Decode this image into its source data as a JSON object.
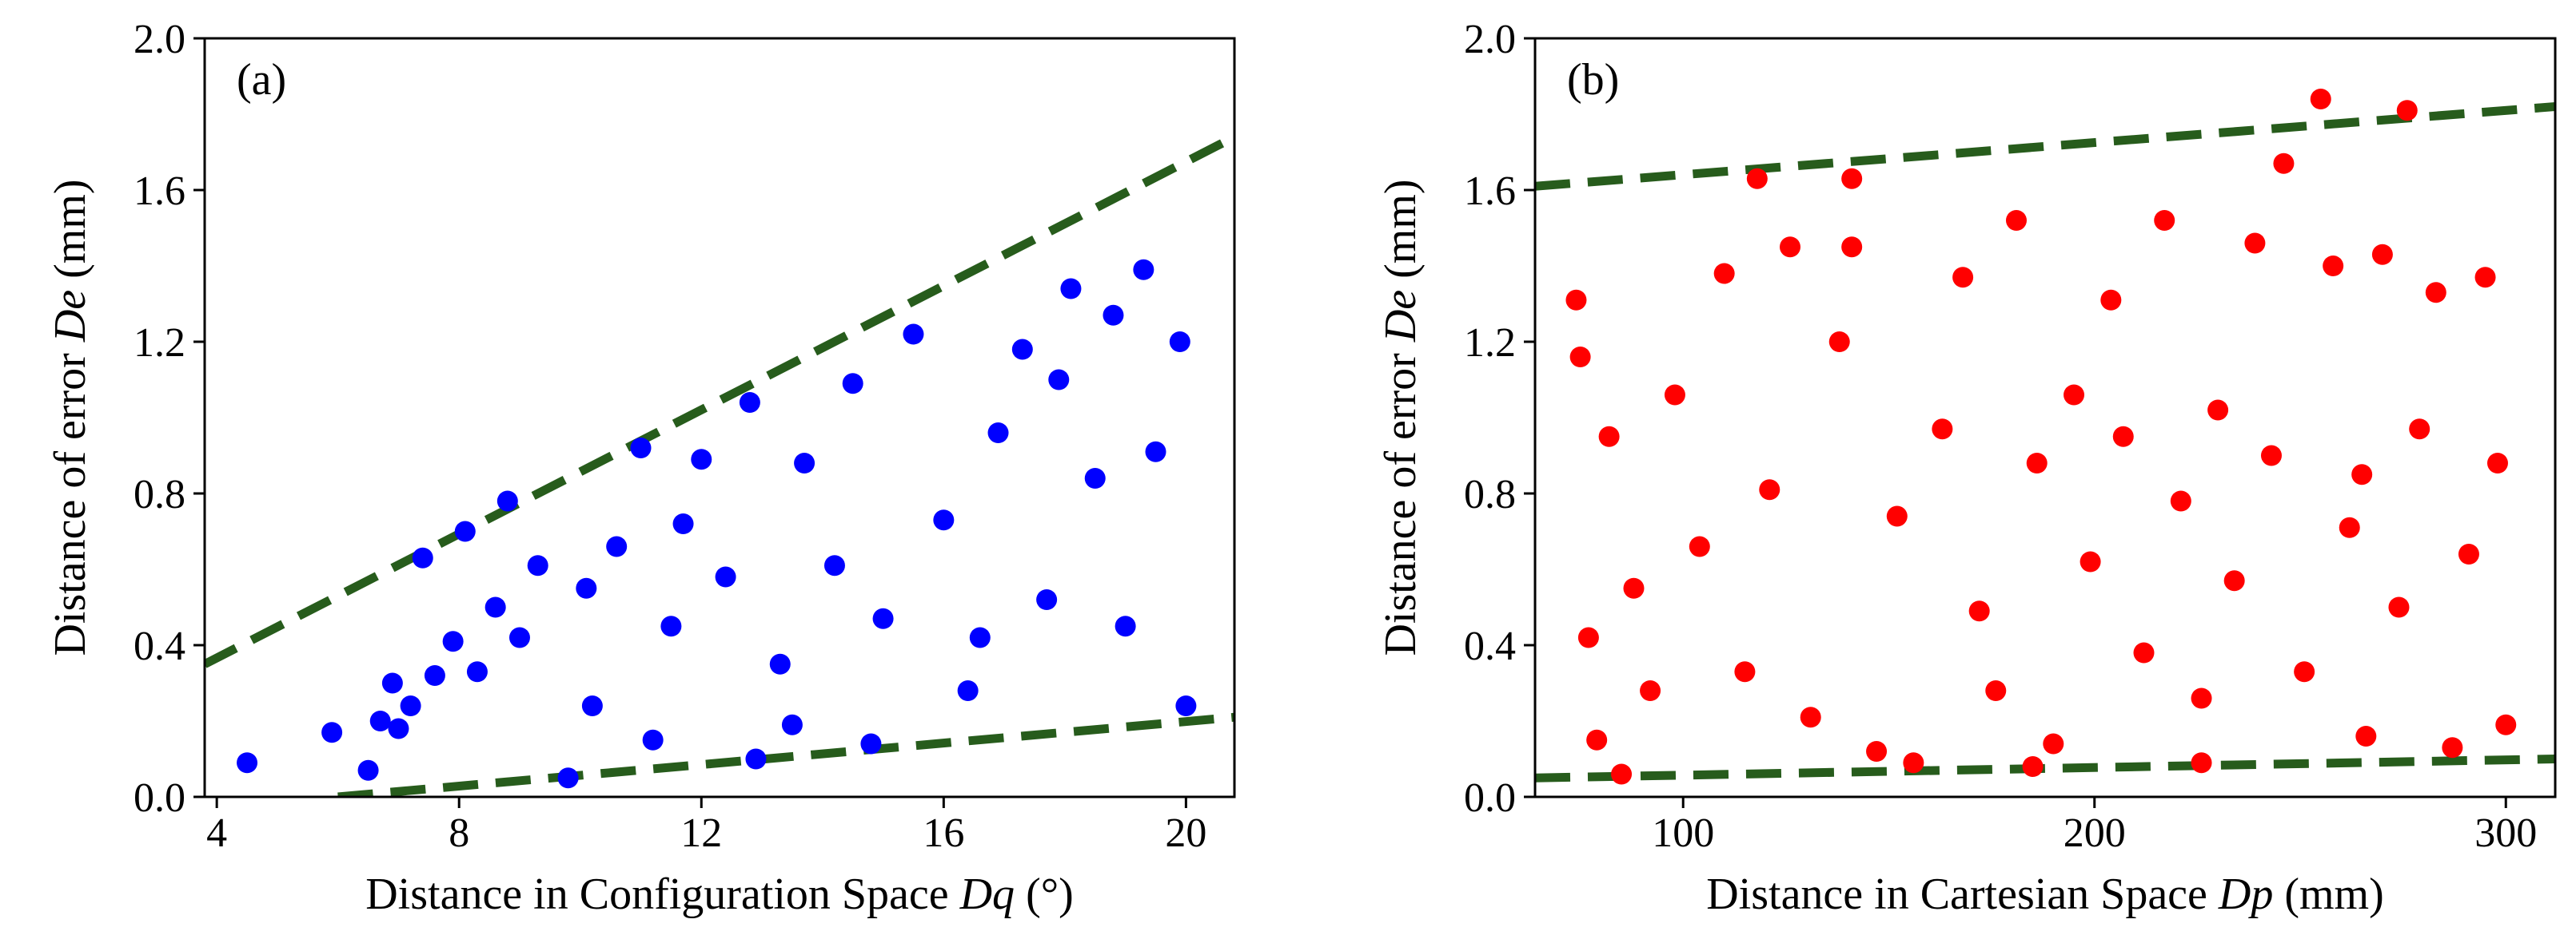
{
  "chart_data": [
    {
      "type": "scatter",
      "panel_label": "(a)",
      "xlabel": {
        "prefix": "Distance in Configuration Space ",
        "var": "Dq",
        "suffix": " (°)"
      },
      "ylabel": {
        "prefix": "Distance of error ",
        "var": "De",
        "suffix": " (mm)"
      },
      "xlim": [
        3.8,
        20.8
      ],
      "ylim": [
        0.0,
        2.0
      ],
      "xticks": [
        4,
        8,
        12,
        16,
        20
      ],
      "xtick_labels": [
        "4",
        "8",
        "12",
        "16",
        "20"
      ],
      "yticks": [
        0.0,
        0.4,
        0.8,
        1.2,
        1.6,
        2.0
      ],
      "ytick_labels": [
        "0.0",
        "0.4",
        "0.8",
        "1.2",
        "1.6",
        "2.0"
      ],
      "point_color": "#0000ff",
      "bound_color": "#275c1c",
      "upper_bound": {
        "x": [
          3.8,
          20.8
        ],
        "y": [
          0.35,
          1.74
        ]
      },
      "lower_bound": {
        "x": [
          6.0,
          20.8
        ],
        "y": [
          0.0,
          0.21
        ]
      },
      "series": [
        {
          "name": "samples",
          "x": [
            4.5,
            5.9,
            6.5,
            6.7,
            6.9,
            7.0,
            7.2,
            7.4,
            7.6,
            7.9,
            8.1,
            8.3,
            8.6,
            8.8,
            9.0,
            9.3,
            9.8,
            10.1,
            10.2,
            10.6,
            11.0,
            11.2,
            11.5,
            11.7,
            12.0,
            12.4,
            12.8,
            13.3,
            13.7,
            14.2,
            14.5,
            15.0,
            15.5,
            16.0,
            16.4,
            16.9,
            17.3,
            17.7,
            18.1,
            18.5,
            18.8,
            19.0,
            19.3,
            19.5,
            19.9,
            20.0,
            12.9,
            13.5,
            14.8,
            16.6,
            17.9
          ],
          "y": [
            0.09,
            0.17,
            0.07,
            0.2,
            0.3,
            0.18,
            0.24,
            0.63,
            0.32,
            0.41,
            0.7,
            0.33,
            0.5,
            0.78,
            0.42,
            0.61,
            0.05,
            0.55,
            0.24,
            0.66,
            0.92,
            0.15,
            0.45,
            0.72,
            0.89,
            0.58,
            1.04,
            0.35,
            0.88,
            0.61,
            1.09,
            0.47,
            1.22,
            0.73,
            0.28,
            0.96,
            1.18,
            0.52,
            1.34,
            0.84,
            1.27,
            0.45,
            1.39,
            0.91,
            1.2,
            0.24,
            0.1,
            0.19,
            0.14,
            0.42,
            1.1
          ]
        }
      ]
    },
    {
      "type": "scatter",
      "panel_label": "(b)",
      "xlabel": {
        "prefix": "Distance in Cartesian Space ",
        "var": "Dp",
        "suffix": " (mm)"
      },
      "ylabel": {
        "prefix": "Distance of error ",
        "var": "De",
        "suffix": " (mm)"
      },
      "xlim": [
        64,
        312
      ],
      "ylim": [
        0.0,
        2.0
      ],
      "xticks": [
        100,
        200,
        300
      ],
      "xtick_labels": [
        "100",
        "200",
        "300"
      ],
      "yticks": [
        0.0,
        0.4,
        0.8,
        1.2,
        1.6,
        2.0
      ],
      "ytick_labels": [
        "0.0",
        "0.4",
        "0.8",
        "1.2",
        "1.6",
        "2.0"
      ],
      "point_color": "#ff0000",
      "bound_color": "#275c1c",
      "upper_bound": {
        "x": [
          64,
          312
        ],
        "y": [
          1.61,
          1.82
        ]
      },
      "lower_bound": {
        "x": [
          64,
          312
        ],
        "y": [
          0.05,
          0.1
        ]
      },
      "series": [
        {
          "name": "samples",
          "x": [
            74,
            75,
            77,
            79,
            82,
            85,
            88,
            92,
            98,
            104,
            110,
            115,
            118,
            121,
            126,
            131,
            138,
            141,
            147,
            152,
            156,
            163,
            168,
            172,
            176,
            181,
            186,
            190,
            195,
            199,
            204,
            207,
            212,
            217,
            221,
            226,
            230,
            234,
            239,
            243,
            246,
            251,
            255,
            258,
            262,
            266,
            270,
            274,
            276,
            279,
            283,
            287,
            291,
            295,
            298,
            300,
            185,
            226,
            141,
            265
          ],
          "y": [
            1.31,
            1.16,
            0.42,
            0.15,
            0.95,
            0.06,
            0.55,
            0.28,
            1.06,
            0.66,
            1.38,
            0.33,
            1.63,
            0.81,
            1.45,
            0.21,
            1.2,
            1.63,
            0.12,
            0.74,
            0.09,
            0.97,
            1.37,
            0.49,
            0.28,
            1.52,
            0.88,
            0.14,
            1.06,
            0.62,
            1.31,
            0.95,
            0.38,
            1.52,
            0.78,
            0.26,
            1.02,
            0.57,
            1.46,
            0.9,
            1.67,
            0.33,
            1.84,
            1.4,
            0.71,
            0.16,
            1.43,
            0.5,
            1.81,
            0.97,
            1.33,
            0.13,
            0.64,
            1.37,
            0.88,
            0.19,
            0.08,
            0.09,
            1.45,
            0.85
          ]
        }
      ]
    }
  ]
}
